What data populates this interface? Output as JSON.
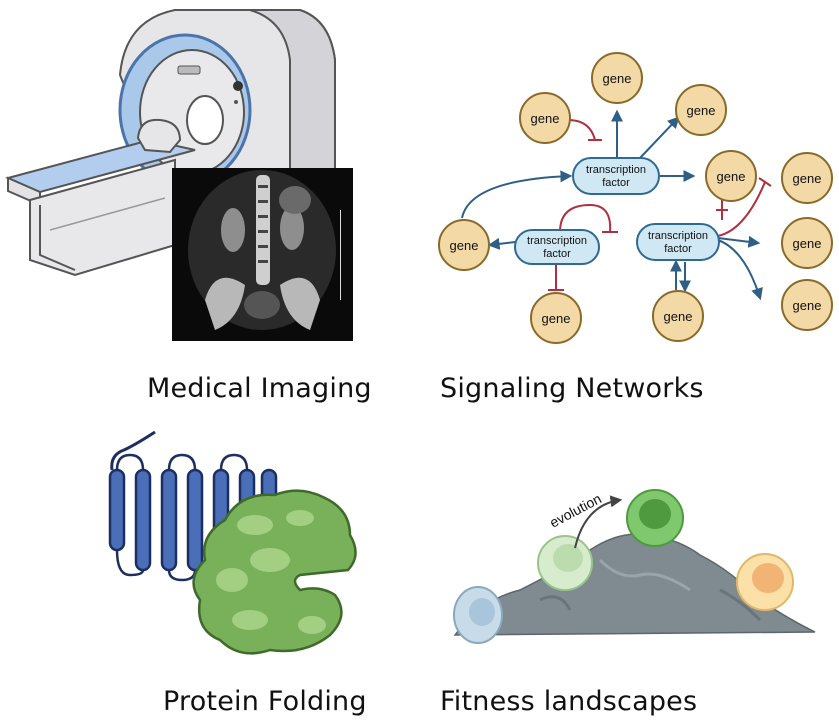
{
  "panels": {
    "medical_imaging": {
      "caption": "Medical Imaging"
    },
    "signaling_networks": {
      "caption": "Signaling Networks",
      "gene_label": "gene",
      "tf_label_line1": "transcription",
      "tf_label_line2": "factor"
    },
    "protein_folding": {
      "caption": "Protein Folding"
    },
    "fitness_landscapes": {
      "caption": "Fitness landscapes",
      "arrow_label": "evolution"
    }
  },
  "colors": {
    "gene_fill": "#f3d9a6",
    "gene_stroke": "#8a6a2a",
    "tf_fill": "#cfe8f3",
    "tf_stroke": "#2f6a92",
    "activation": "#2f5f86",
    "inhibition": "#b03040",
    "protein_blue": "#4a6fb8",
    "protein_green": "#79b05a",
    "mountain": "#7f8b90"
  }
}
